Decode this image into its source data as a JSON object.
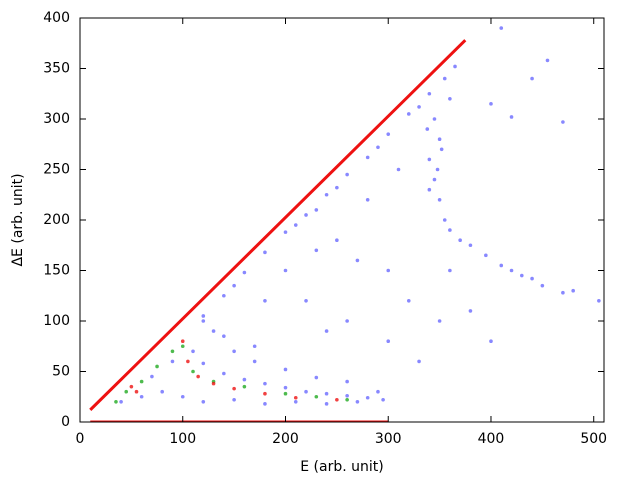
{
  "chart_data": {
    "type": "scatter",
    "xlabel": "E (arb. unit)",
    "ylabel": "ΔE (arb. unit)",
    "xlim": [
      0,
      510
    ],
    "ylim": [
      0,
      400
    ],
    "xticks": [
      0,
      100,
      200,
      300,
      400,
      500
    ],
    "yticks": [
      0,
      50,
      100,
      150,
      200,
      250,
      300,
      350,
      400
    ],
    "series": [
      {
        "color": "#6a6aff",
        "mode": "points",
        "x": [
          120,
          140,
          160,
          180,
          200,
          220,
          240,
          260,
          280,
          300,
          320,
          340,
          355,
          365,
          150,
          210,
          250,
          290,
          330,
          230,
          345,
          350,
          340,
          345,
          350,
          355,
          360,
          340,
          348,
          352,
          338,
          360,
          370,
          380,
          395,
          410,
          430,
          450,
          470,
          505,
          480,
          420,
          440,
          410,
          455,
          470,
          440,
          420,
          400,
          110,
          120,
          140,
          160,
          180,
          200,
          220,
          240,
          260,
          280,
          130,
          150,
          170,
          200,
          230,
          260,
          290,
          120,
          140,
          170,
          40,
          60,
          80,
          100,
          120,
          150,
          180,
          210,
          240,
          270,
          295,
          70,
          90,
          200,
          250,
          280,
          300,
          320,
          260,
          220,
          300,
          330,
          350,
          380,
          400,
          310,
          270,
          230,
          180,
          240,
          360
        ],
        "values": [
          105,
          125,
          148,
          168,
          188,
          205,
          225,
          245,
          262,
          285,
          305,
          325,
          340,
          352,
          135,
          195,
          232,
          272,
          312,
          210,
          300,
          280,
          260,
          240,
          220,
          200,
          320,
          230,
          250,
          270,
          290,
          190,
          180,
          175,
          165,
          155,
          145,
          135,
          128,
          120,
          130,
          150,
          142,
          390,
          358,
          297,
          340,
          302,
          315,
          70,
          58,
          48,
          42,
          38,
          34,
          30,
          28,
          26,
          24,
          90,
          70,
          60,
          52,
          44,
          40,
          30,
          100,
          85,
          75,
          20,
          25,
          30,
          25,
          20,
          22,
          18,
          20,
          18,
          20,
          22,
          45,
          60,
          150,
          180,
          220,
          150,
          120,
          100,
          120,
          80,
          60,
          100,
          110,
          80,
          250,
          160,
          170,
          120,
          90,
          150
        ]
      },
      {
        "color": "#22aa22",
        "mode": "points",
        "x": [
          35,
          45,
          60,
          75,
          90,
          100,
          110,
          130,
          160,
          200,
          230,
          260
        ],
        "values": [
          20,
          30,
          40,
          55,
          70,
          75,
          50,
          40,
          35,
          28,
          25,
          22
        ]
      },
      {
        "color": "#ee1111",
        "mode": "points",
        "x": [
          50,
          55,
          100,
          105,
          115,
          130,
          150,
          180,
          210,
          250
        ],
        "values": [
          35,
          30,
          80,
          60,
          45,
          38,
          33,
          28,
          24,
          22
        ]
      },
      {
        "color": "#ee1111",
        "mode": "line",
        "x": [
          10,
          375
        ],
        "values": [
          12,
          378
        ]
      },
      {
        "color": "#ee1111",
        "mode": "line",
        "x": [
          10,
          300
        ],
        "values": [
          0,
          0
        ]
      }
    ]
  }
}
